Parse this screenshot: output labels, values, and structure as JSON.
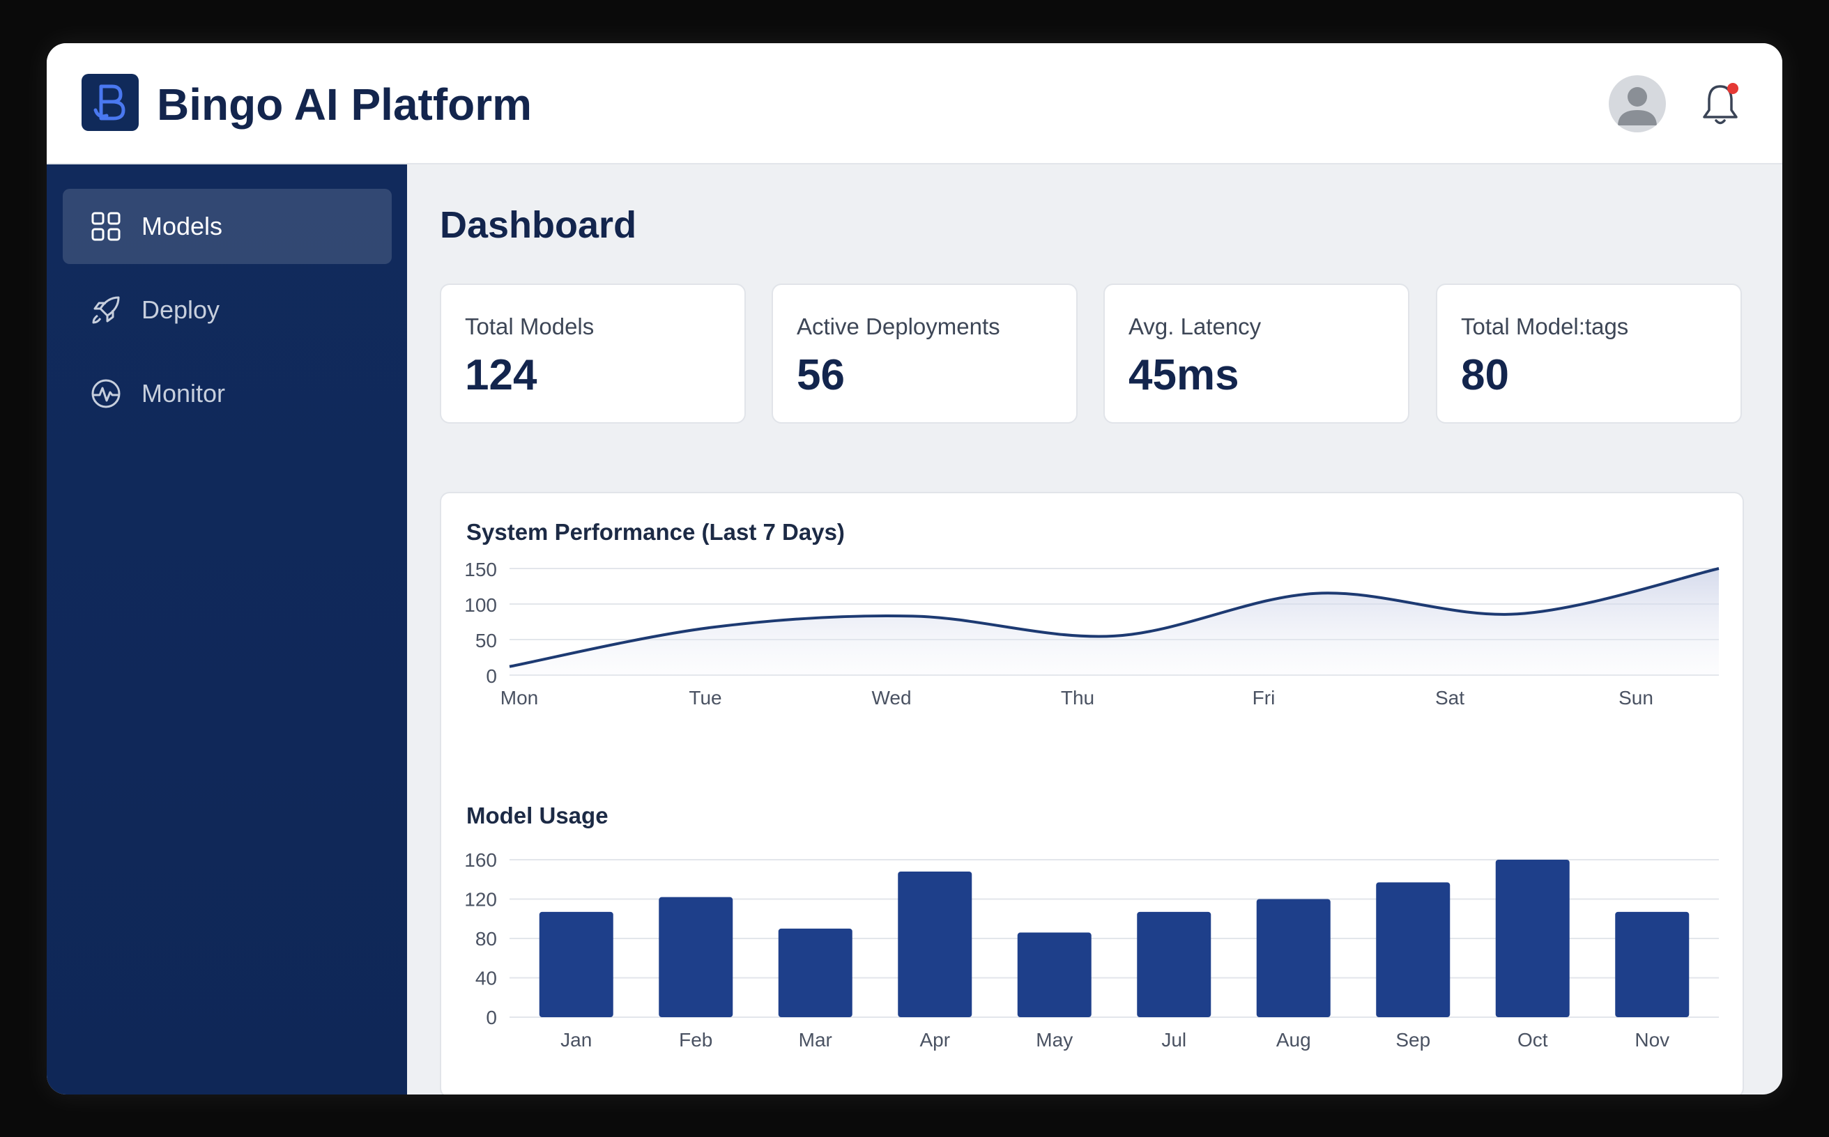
{
  "app": {
    "title": "Bingo AI Platform"
  },
  "colors": {
    "sidebar": "#112a5c",
    "accent": "#1e3f8a",
    "line": "#1d3a72",
    "notification_dot": "#e53935"
  },
  "header": {
    "logo_icon": "bingo-logo-icon",
    "avatar_icon": "user-avatar-icon",
    "bell_icon": "bell-icon"
  },
  "sidebar": {
    "items": [
      {
        "label": "Models",
        "icon": "grid-icon",
        "active": true
      },
      {
        "label": "Deploy",
        "icon": "rocket-icon",
        "active": false
      },
      {
        "label": "Monitor",
        "icon": "pulse-icon",
        "active": false
      }
    ]
  },
  "main": {
    "title": "Dashboard",
    "stats": [
      {
        "label": "Total Models",
        "value": "124"
      },
      {
        "label": "Active Deployments",
        "value": "56"
      },
      {
        "label": "Avg. Latency",
        "value": "45ms"
      },
      {
        "label": "Total Model:tags",
        "value": "80"
      }
    ]
  },
  "chart_data": [
    {
      "type": "area",
      "title": "System Performance (Last 7 Days)",
      "categories": [
        "Mon",
        "Tue",
        "Wed",
        "Thu",
        "Fri",
        "Sat",
        "Sun"
      ],
      "values": [
        12,
        67,
        83,
        55,
        115,
        86,
        150
      ],
      "ylim": [
        0,
        150
      ],
      "yticks": [
        0,
        50,
        100,
        150
      ],
      "grid": true
    },
    {
      "type": "bar",
      "title": "Model Usage",
      "categories": [
        "Jan",
        "Feb",
        "Mar",
        "Apr",
        "May",
        "Jul",
        "Aug",
        "Sep",
        "Oct",
        "Nov"
      ],
      "values": [
        107,
        122,
        90,
        148,
        86,
        107,
        120,
        137,
        160,
        107
      ],
      "ylim": [
        0,
        160
      ],
      "yticks": [
        0,
        40,
        80,
        120,
        160
      ],
      "grid": true
    }
  ]
}
